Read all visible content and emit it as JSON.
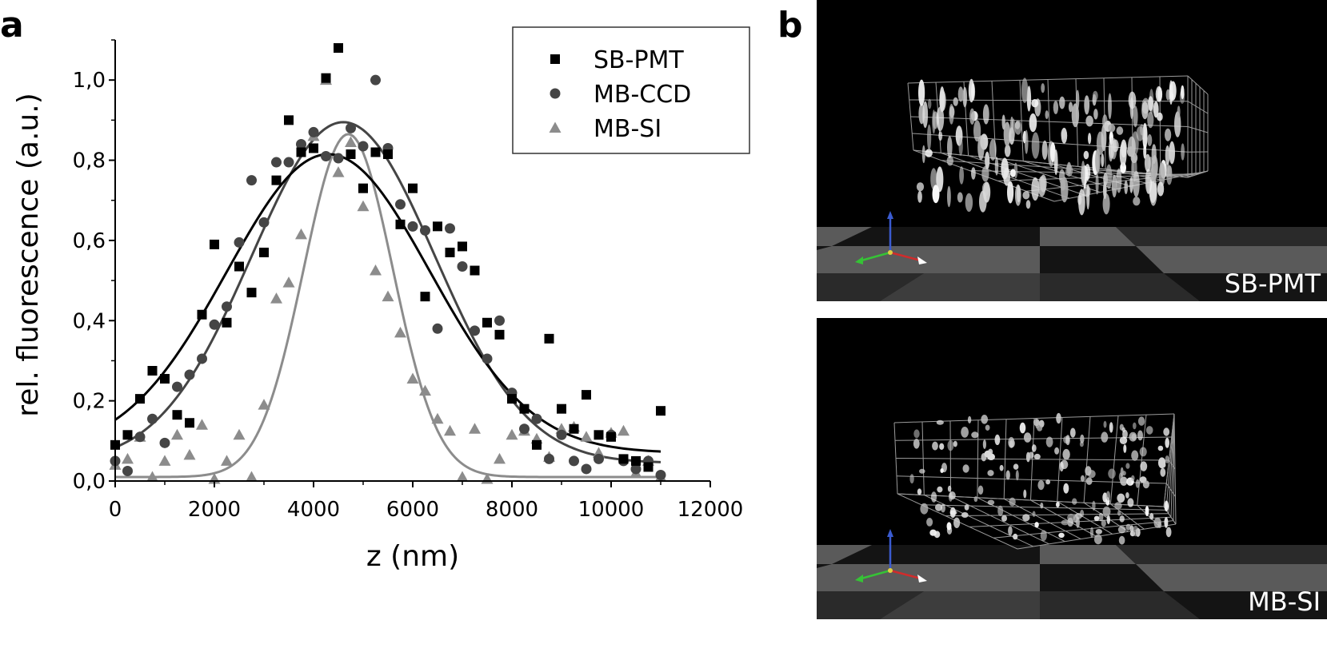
{
  "panels": {
    "a_label": "a",
    "b_label": "b",
    "render_top_label": "SB-PMT",
    "render_bottom_label": "MB-SI"
  },
  "chart_data": {
    "type": "scatter",
    "title": "",
    "xlabel": "z (nm)",
    "ylabel": "rel. fluorescence (a.u.)",
    "xlim": [
      0,
      12000
    ],
    "ylim": [
      0,
      1.1
    ],
    "x_ticks": [
      0,
      2000,
      4000,
      6000,
      8000,
      10000,
      12000
    ],
    "x_tick_labels": [
      "0",
      "2000",
      "4000",
      "6000",
      "8000",
      "10000",
      "12000"
    ],
    "y_ticks": [
      0,
      0.2,
      0.4,
      0.6,
      0.8,
      1.0
    ],
    "y_tick_labels": [
      "0,0",
      "0,2",
      "0,4",
      "0,6",
      "0,8",
      "1,0"
    ],
    "legend_position": "top-right",
    "grid": false,
    "series": [
      {
        "name": "SB-PMT",
        "marker": "square",
        "color": "#000000",
        "fit": {
          "type": "gaussian",
          "baseline": 0.07,
          "amplitude": 0.745,
          "center": 4300,
          "sigma": 2050
        },
        "points": [
          [
            0,
            0.09
          ],
          [
            250,
            0.115
          ],
          [
            500,
            0.205
          ],
          [
            750,
            0.275
          ],
          [
            1000,
            0.255
          ],
          [
            1250,
            0.165
          ],
          [
            1500,
            0.145
          ],
          [
            1750,
            0.415
          ],
          [
            2000,
            0.59
          ],
          [
            2250,
            0.395
          ],
          [
            2500,
            0.535
          ],
          [
            2750,
            0.47
          ],
          [
            3000,
            0.57
          ],
          [
            3250,
            0.75
          ],
          [
            3500,
            0.9
          ],
          [
            3750,
            0.82
          ],
          [
            4000,
            0.83
          ],
          [
            4250,
            1.005
          ],
          [
            4500,
            1.08
          ],
          [
            4750,
            0.815
          ],
          [
            5000,
            0.73
          ],
          [
            5250,
            0.82
          ],
          [
            5500,
            0.815
          ],
          [
            5750,
            0.64
          ],
          [
            6000,
            0.73
          ],
          [
            6250,
            0.46
          ],
          [
            6500,
            0.635
          ],
          [
            6750,
            0.57
          ],
          [
            7000,
            0.585
          ],
          [
            7250,
            0.525
          ],
          [
            7500,
            0.395
          ],
          [
            7750,
            0.365
          ],
          [
            8000,
            0.205
          ],
          [
            8250,
            0.18
          ],
          [
            8500,
            0.09
          ],
          [
            8750,
            0.355
          ],
          [
            9000,
            0.18
          ],
          [
            9250,
            0.13
          ],
          [
            9500,
            0.215
          ],
          [
            9750,
            0.115
          ],
          [
            10000,
            0.11
          ],
          [
            10250,
            0.055
          ],
          [
            10500,
            0.05
          ],
          [
            10750,
            0.035
          ],
          [
            11000,
            0.175
          ]
        ]
      },
      {
        "name": "MB-CCD",
        "marker": "circle",
        "color": "#454545",
        "fit": {
          "type": "gaussian",
          "baseline": 0.045,
          "amplitude": 0.85,
          "center": 4600,
          "sigma": 1850
        },
        "points": [
          [
            0,
            0.05
          ],
          [
            250,
            0.025
          ],
          [
            500,
            0.11
          ],
          [
            750,
            0.155
          ],
          [
            1000,
            0.095
          ],
          [
            1250,
            0.235
          ],
          [
            1500,
            0.265
          ],
          [
            1750,
            0.305
          ],
          [
            2000,
            0.39
          ],
          [
            2250,
            0.435
          ],
          [
            2500,
            0.595
          ],
          [
            2750,
            0.75
          ],
          [
            3000,
            0.645
          ],
          [
            3250,
            0.795
          ],
          [
            3500,
            0.795
          ],
          [
            3750,
            0.84
          ],
          [
            4000,
            0.87
          ],
          [
            4250,
            0.81
          ],
          [
            4500,
            0.805
          ],
          [
            4750,
            0.88
          ],
          [
            5000,
            0.835
          ],
          [
            5250,
            1.0
          ],
          [
            5500,
            0.83
          ],
          [
            5750,
            0.69
          ],
          [
            6000,
            0.635
          ],
          [
            6250,
            0.625
          ],
          [
            6500,
            0.38
          ],
          [
            6750,
            0.63
          ],
          [
            7000,
            0.535
          ],
          [
            7250,
            0.375
          ],
          [
            7500,
            0.305
          ],
          [
            7750,
            0.4
          ],
          [
            8000,
            0.22
          ],
          [
            8250,
            0.13
          ],
          [
            8500,
            0.155
          ],
          [
            8750,
            0.055
          ],
          [
            9000,
            0.115
          ],
          [
            9250,
            0.05
          ],
          [
            9500,
            0.03
          ],
          [
            9750,
            0.055
          ],
          [
            10000,
            0.115
          ],
          [
            10250,
            0.05
          ],
          [
            10500,
            0.03
          ],
          [
            10750,
            0.05
          ],
          [
            11000,
            0.015
          ]
        ]
      },
      {
        "name": "MB-SI",
        "marker": "triangle",
        "color": "#8c8c8c",
        "fit": {
          "type": "gaussian",
          "baseline": 0.01,
          "amplitude": 0.855,
          "center": 4700,
          "sigma": 900
        },
        "points": [
          [
            0,
            0.04
          ],
          [
            250,
            0.055
          ],
          [
            500,
            0.11
          ],
          [
            750,
            0.01
          ],
          [
            1000,
            0.05
          ],
          [
            1250,
            0.115
          ],
          [
            1500,
            0.065
          ],
          [
            1750,
            0.14
          ],
          [
            2000,
            0.005
          ],
          [
            2250,
            0.05
          ],
          [
            2500,
            0.115
          ],
          [
            2750,
            0.01
          ],
          [
            3000,
            0.19
          ],
          [
            3250,
            0.455
          ],
          [
            3500,
            0.495
          ],
          [
            3750,
            0.615
          ],
          [
            4000,
            0.86
          ],
          [
            4250,
            1.0
          ],
          [
            4500,
            0.77
          ],
          [
            4750,
            0.845
          ],
          [
            5000,
            0.685
          ],
          [
            5250,
            0.525
          ],
          [
            5500,
            0.46
          ],
          [
            5750,
            0.37
          ],
          [
            6000,
            0.255
          ],
          [
            6250,
            0.225
          ],
          [
            6500,
            0.155
          ],
          [
            6750,
            0.125
          ],
          [
            7000,
            0.01
          ],
          [
            7250,
            0.13
          ],
          [
            7500,
            0.005
          ],
          [
            7750,
            0.055
          ],
          [
            8000,
            0.115
          ],
          [
            8250,
            0.125
          ],
          [
            8500,
            0.105
          ],
          [
            8750,
            0.06
          ],
          [
            9000,
            0.13
          ],
          [
            9250,
            0.135
          ],
          [
            9500,
            0.11
          ],
          [
            9750,
            0.07
          ],
          [
            10000,
            0.12
          ],
          [
            10250,
            0.125
          ],
          [
            10500,
            0.02
          ],
          [
            10750,
            0.05
          ],
          [
            11000,
            0.01
          ]
        ]
      }
    ]
  }
}
